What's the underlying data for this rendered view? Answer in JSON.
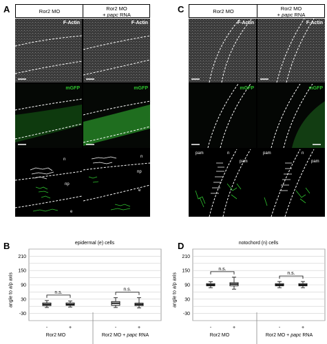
{
  "panels": {
    "A": "A",
    "B": "B",
    "C": "C",
    "D": "D"
  },
  "headers": {
    "left_col": "Ror2 MO",
    "right_col_line1": "Ror2 MO",
    "right_col_prefix": "+ ",
    "right_col_italic": "papc",
    "right_col_suffix": " RNA"
  },
  "stains": {
    "actin": "F-Actin",
    "gfp": "mGFP"
  },
  "tissue_labels": {
    "A": {
      "n": "n",
      "np": "np",
      "e": "e"
    },
    "C": {
      "pam": "pam",
      "n": "n"
    }
  },
  "colors": {
    "gfp_green": "#2fc42f",
    "tile_bg": "#0a0a0a"
  },
  "chart_data": [
    {
      "type": "box",
      "title": "epidermal (e) cells",
      "ylabel": "angle to a/p axis",
      "yticks": [
        -30,
        30,
        90,
        150,
        210
      ],
      "ylim": [
        -60,
        240
      ],
      "categories": [
        "-",
        "+",
        "-",
        "+"
      ],
      "groups": [
        {
          "label": "Ror2 MO",
          "categories": [
            "-",
            "+"
          ]
        },
        {
          "label_prefix": "Ror2 MO + ",
          "label_italic": "papc",
          "label_suffix": " RNA",
          "categories": [
            "-",
            "+"
          ]
        }
      ],
      "boxes": [
        {
          "min": -5,
          "q1": 3,
          "median": 8,
          "q3": 14,
          "max": 24
        },
        {
          "min": -3,
          "q1": 4,
          "median": 8,
          "q3": 14,
          "max": 22
        },
        {
          "min": -5,
          "q1": 4,
          "median": 13,
          "q3": 20,
          "max": 36
        },
        {
          "min": -7,
          "q1": 3,
          "median": 8,
          "q3": 13,
          "max": 36
        }
      ],
      "significance": [
        "n.s.",
        "n.s."
      ]
    },
    {
      "type": "box",
      "title": "notochord (n) cells",
      "ylabel": "angle to a/p axis",
      "yticks": [
        -30,
        30,
        90,
        150,
        210
      ],
      "ylim": [
        -60,
        240
      ],
      "categories": [
        "-",
        "+",
        "-",
        "+"
      ],
      "groups": [
        {
          "label": "Ror2 MO",
          "categories": [
            "-",
            "+"
          ]
        },
        {
          "label_prefix": "Ror2 MO + ",
          "label_italic": "papc",
          "label_suffix": " RNA",
          "categories": [
            "-",
            "+"
          ]
        }
      ],
      "boxes": [
        {
          "min": 78,
          "q1": 86,
          "median": 90,
          "q3": 95,
          "max": 103
        },
        {
          "min": 72,
          "q1": 86,
          "median": 93,
          "q3": 99,
          "max": 122
        },
        {
          "min": 78,
          "q1": 86,
          "median": 90,
          "q3": 95,
          "max": 104
        },
        {
          "min": 78,
          "q1": 86,
          "median": 90,
          "q3": 95,
          "max": 104
        }
      ],
      "significance": [
        "n.s.",
        "n.s."
      ]
    }
  ]
}
